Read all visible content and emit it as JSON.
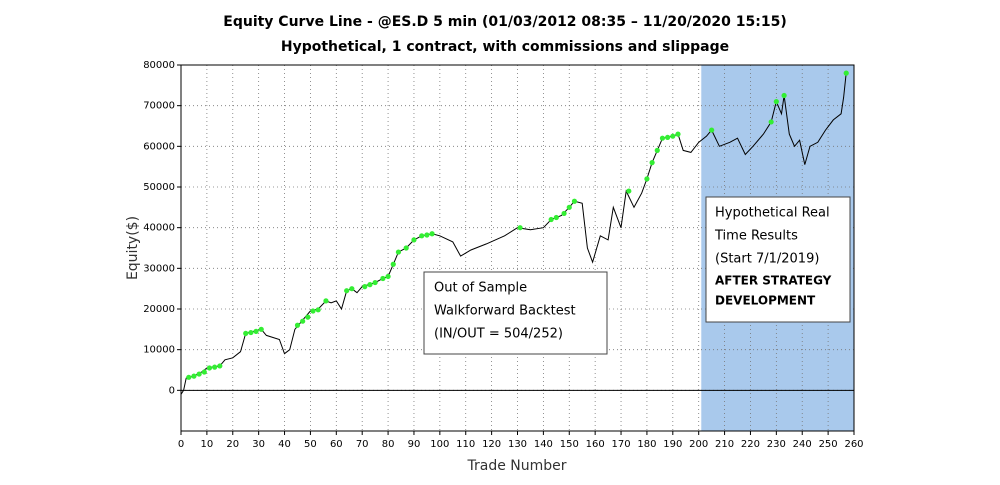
{
  "chart_data": {
    "type": "line",
    "title": "Equity Curve Line - @ES.D 5 min (01/03/2012 08:35 – 11/20/2020 15:15)",
    "subtitle": "Hypothetical, 1 contract, with commissions and slippage",
    "x_label": "Trade Number",
    "y_label": "Equity($)",
    "xlim": [
      0,
      260
    ],
    "ylim": [
      -10000,
      80000
    ],
    "xticks": [
      0,
      10,
      20,
      30,
      40,
      50,
      60,
      70,
      80,
      90,
      100,
      110,
      120,
      130,
      140,
      150,
      160,
      170,
      180,
      190,
      200,
      210,
      220,
      230,
      240,
      250,
      260
    ],
    "yticks": [
      0,
      10000,
      20000,
      30000,
      40000,
      50000,
      60000,
      70000,
      80000
    ],
    "grid": true,
    "shaded_region": {
      "xlim": [
        201,
        260
      ],
      "color": "#a9c9ec"
    },
    "series": [
      {
        "color": "#000000",
        "x": [
          0,
          1,
          2,
          5,
          8,
          10,
          15,
          17,
          20,
          23,
          25,
          28,
          31,
          33,
          38,
          40,
          42,
          44,
          46,
          48,
          50,
          53,
          56,
          58,
          60,
          62,
          64,
          66,
          68,
          70,
          75,
          78,
          80,
          82,
          84,
          87,
          90,
          93,
          97,
          100,
          105,
          108,
          112,
          118,
          125,
          130,
          135,
          140,
          143,
          147,
          150,
          152,
          155,
          157,
          159,
          162,
          165,
          167,
          170,
          172,
          175,
          178,
          180,
          182,
          184,
          186,
          190,
          192,
          194,
          197,
          200,
          203,
          205,
          208,
          212,
          215,
          218,
          221,
          225,
          228,
          230,
          232,
          233,
          235,
          237,
          239,
          241,
          243,
          246,
          249,
          252,
          255,
          256,
          257
        ],
        "values": [
          -1000,
          0,
          3000,
          3500,
          4500,
          5500,
          6000,
          7500,
          8000,
          9500,
          14000,
          14500,
          15000,
          13500,
          12500,
          9000,
          10000,
          15000,
          16500,
          18000,
          19500,
          20000,
          22000,
          21500,
          22000,
          20000,
          24500,
          25000,
          24000,
          25500,
          26500,
          27500,
          28000,
          31000,
          34000,
          35000,
          37000,
          38000,
          38500,
          38000,
          36500,
          33000,
          34500,
          36000,
          38000,
          40000,
          39500,
          40000,
          42000,
          43000,
          45000,
          46500,
          46000,
          35000,
          31500,
          38000,
          37000,
          45000,
          40000,
          49000,
          45000,
          48500,
          52000,
          56000,
          59000,
          62000,
          62500,
          63000,
          59000,
          58500,
          61000,
          62500,
          64000,
          60000,
          61000,
          62000,
          58000,
          60000,
          63000,
          66000,
          71000,
          68000,
          72500,
          63000,
          60000,
          61500,
          55500,
          60000,
          61000,
          64000,
          66500,
          68000,
          72000,
          78000
        ]
      },
      {
        "color": "#33ee33",
        "x": [
          3,
          5,
          7,
          9,
          11,
          13,
          15,
          25,
          27,
          29,
          31,
          45,
          47,
          49,
          51,
          53,
          56,
          64,
          66,
          71,
          73,
          75,
          78,
          80,
          82,
          84,
          87,
          90,
          93,
          95,
          97,
          131,
          143,
          145,
          148,
          150,
          152,
          173,
          180,
          182,
          184,
          186,
          188,
          190,
          192,
          205,
          228,
          230,
          233,
          257
        ],
        "values": [
          3200,
          3500,
          4000,
          4500,
          5500,
          5700,
          6000,
          14000,
          14200,
          14500,
          15000,
          16000,
          17000,
          18000,
          19500,
          19800,
          22000,
          24500,
          25000,
          25500,
          26000,
          26500,
          27500,
          28000,
          31000,
          34000,
          35000,
          37000,
          38000,
          38200,
          38500,
          40000,
          42000,
          42500,
          43500,
          45000,
          46500,
          49000,
          52000,
          56000,
          59000,
          62000,
          62200,
          62500,
          63000,
          64000,
          66000,
          71000,
          72500,
          78000
        ]
      }
    ],
    "annotations": [
      {
        "lines": [
          "Out of Sample",
          "Walkforward Backtest",
          "(IN/OUT = 504/252)"
        ]
      },
      {
        "lines": [
          "Hypothetical Real",
          "Time Results",
          "(Start 7/1/2019)",
          "AFTER  STRATEGY",
          "DEVELOPMENT"
        ]
      }
    ]
  }
}
